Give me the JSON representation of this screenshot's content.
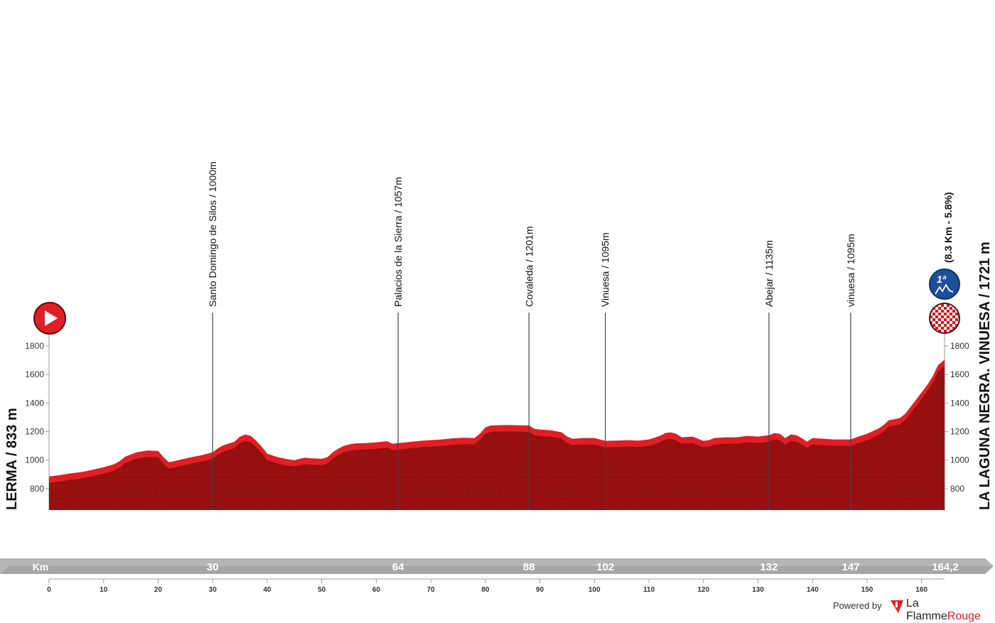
{
  "chart_data": {
    "type": "area",
    "title": "",
    "xlabel": "Km",
    "ylabel": "",
    "xlim": [
      0,
      164.2
    ],
    "ylim": [
      650,
      1900
    ],
    "y_ticks": [
      800,
      1000,
      1200,
      1400,
      1600,
      1800
    ],
    "x_ticks": [
      0,
      10,
      20,
      30,
      40,
      50,
      60,
      70,
      80,
      90,
      100,
      110,
      120,
      130,
      140,
      150,
      160
    ],
    "fill_color": "#9a0f0f",
    "top_color": "#e01e26",
    "profile": {
      "x": [
        0,
        2,
        4,
        6,
        8,
        10,
        12,
        13,
        14,
        15,
        16,
        18,
        20,
        21,
        22,
        24,
        26,
        28,
        29,
        30,
        31,
        32,
        34,
        35,
        36,
        37,
        38,
        39,
        40,
        42,
        44,
        45,
        46,
        47,
        48,
        50,
        51,
        52,
        53,
        54,
        55,
        56,
        58,
        60,
        62,
        63,
        64,
        66,
        68,
        70,
        72,
        74,
        76,
        78,
        79,
        80,
        81,
        82,
        84,
        86,
        88,
        89,
        90,
        92,
        94,
        95,
        96,
        98,
        100,
        102,
        104,
        106,
        108,
        110,
        112,
        113,
        114,
        115,
        116,
        118,
        120,
        121,
        122,
        124,
        126,
        128,
        130,
        132,
        133,
        134,
        135,
        136,
        137,
        138,
        139,
        140,
        142,
        144,
        146,
        147,
        148,
        150,
        152,
        153,
        154,
        156,
        157,
        158,
        159,
        160,
        161,
        162,
        163,
        164.2
      ],
      "y": [
        840,
        850,
        862,
        872,
        888,
        905,
        928,
        950,
        980,
        995,
        1010,
        1022,
        1020,
        975,
        940,
        958,
        975,
        990,
        1000,
        1010,
        1040,
        1060,
        1085,
        1120,
        1135,
        1125,
        1090,
        1050,
        1000,
        975,
        960,
        955,
        965,
        972,
        968,
        965,
        975,
        1010,
        1035,
        1055,
        1065,
        1072,
        1075,
        1080,
        1088,
        1070,
        1075,
        1082,
        1090,
        1095,
        1100,
        1108,
        1112,
        1110,
        1140,
        1185,
        1198,
        1200,
        1202,
        1200,
        1198,
        1175,
        1170,
        1165,
        1150,
        1120,
        1105,
        1110,
        1110,
        1090,
        1092,
        1095,
        1092,
        1100,
        1125,
        1145,
        1150,
        1140,
        1115,
        1120,
        1090,
        1095,
        1110,
        1115,
        1115,
        1125,
        1120,
        1130,
        1145,
        1140,
        1110,
        1135,
        1130,
        1110,
        1085,
        1110,
        1105,
        1100,
        1100,
        1100,
        1115,
        1140,
        1175,
        1200,
        1235,
        1250,
        1280,
        1330,
        1380,
        1430,
        1480,
        1540,
        1620,
        1660
      ]
    },
    "checkpoints": [
      {
        "km": 30,
        "km_label": "30",
        "label": "Santo Domingo de Silos / 1000m"
      },
      {
        "km": 64,
        "km_label": "64",
        "label": "Palacios de la Sierra / 1057m"
      },
      {
        "km": 88,
        "km_label": "88",
        "label": "Covaleda  / 1201m"
      },
      {
        "km": 102,
        "km_label": "102",
        "label": "Vinuesa / 1095m"
      },
      {
        "km": 132,
        "km_label": "132",
        "label": "Abejar / 1135m"
      },
      {
        "km": 147,
        "km_label": "147",
        "label": "vinuesa / 1095m"
      }
    ],
    "start_label": "LERMA / 833 m",
    "finish_label": "LA LAGUNA NEGRA. VINUESA / 1721 m",
    "finish_km_label": "164,2",
    "climb_label": "(8.3 Km - 5.8%)",
    "climb_category": "1ª",
    "grid": false,
    "legend": "none"
  },
  "footer": {
    "powered_label": "Powered by",
    "brand_a": "La Flamme",
    "brand_b": "Rouge"
  }
}
